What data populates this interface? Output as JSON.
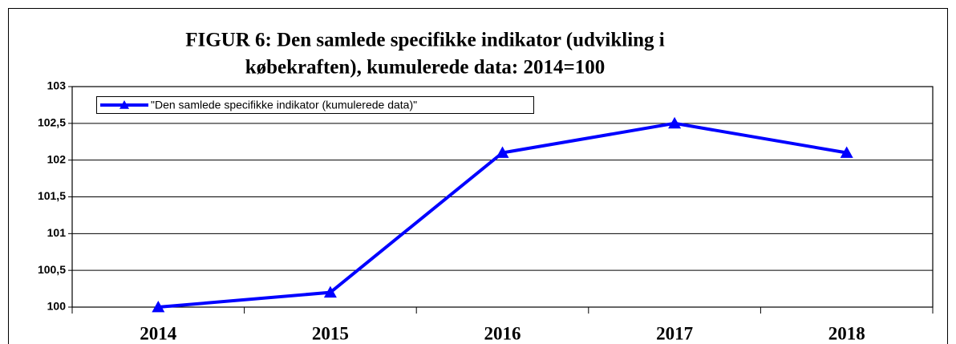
{
  "chart_data": {
    "type": "line",
    "title": [
      "FIGUR 6: Den samlede specifikke indikator (udvikling i",
      "købekraften), kumulerede data: 2014=100"
    ],
    "categories": [
      "2014",
      "2015",
      "2016",
      "2017",
      "2018"
    ],
    "series": [
      {
        "name": "\"Den samlede specifikke indikator (kumulerede data)\"",
        "color": "#0000ff",
        "values": [
          100,
          100.2,
          102.1,
          102.5,
          102.1
        ]
      }
    ],
    "ylim": [
      100,
      103
    ],
    "yticks": [
      100,
      {
        "value": 100.5,
        "label": "100,5"
      },
      101,
      {
        "value": 101.5,
        "label": "101,5"
      },
      102,
      {
        "value": 102.5,
        "label": "102,5"
      },
      103
    ],
    "grid": true,
    "legend": "upper left"
  }
}
